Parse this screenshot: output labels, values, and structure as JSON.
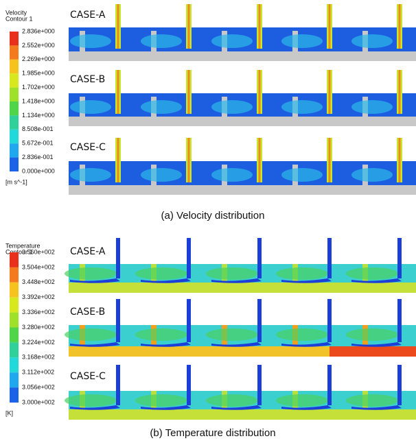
{
  "panels": [
    {
      "legend": {
        "title": "Velocity",
        "subtitle": "Contour 1",
        "labels": [
          "2.836e+000",
          "2.552e+000",
          "2.269e+000",
          "1.985e+000",
          "1.702e+000",
          "1.418e+000",
          "1.134e+000",
          "8.508e-001",
          "5.672e-001",
          "2.836e-001",
          "0.000e+000"
        ],
        "unit": "[m s^-1]"
      },
      "cases": [
        "CASE-A",
        "CASE-B",
        "CASE-C"
      ],
      "caption": "(a) Velocity distribution"
    },
    {
      "legend": {
        "title": "Temperature",
        "subtitle": "Contour 1",
        "labels": [
          "3.560e+002",
          "3.504e+002",
          "3.448e+002",
          "3.392e+002",
          "3.336e+002",
          "3.280e+002",
          "3.224e+002",
          "3.168e+002",
          "3.112e+002",
          "3.056e+002",
          "3.000e+002"
        ],
        "unit": "[K]"
      },
      "cases": [
        "CASE-A",
        "CASE-B",
        "CASE-C"
      ],
      "caption": "(b) Temperature distribution"
    }
  ]
}
